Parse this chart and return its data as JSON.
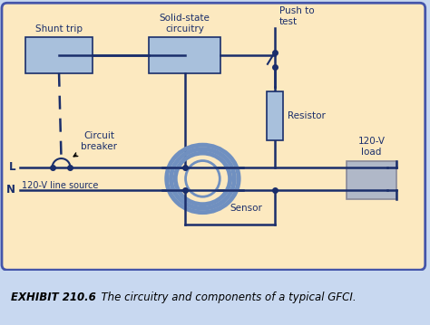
{
  "bg_color": "#fce9c0",
  "outer_bg": "#c8d8f0",
  "border_color": "#1a2e6b",
  "line_color": "#1a2e6b",
  "box_fill": "#a8c0dc",
  "box_edge": "#1a2e6b",
  "load_fill": "#b0b8c8",
  "load_edge": "#888899",
  "toroid_color": "#7090c0",
  "text_color": "#1a2e6b",
  "caption_bold": "EXHIBIT 210.6",
  "caption_italic": "  The circuitry and components of a typical GFCI.",
  "labels": {
    "shunt_trip": "Shunt trip",
    "solid_state": "Solid-state\ncircuitry",
    "push_to_test": "Push to\ntest",
    "circuit_breaker": "Circuit\nbreaker",
    "resistor": "Resistor",
    "120v_load": "120-V\nload",
    "L": "L",
    "N": "N",
    "source": "120-V line source",
    "sensor": "Sensor"
  }
}
